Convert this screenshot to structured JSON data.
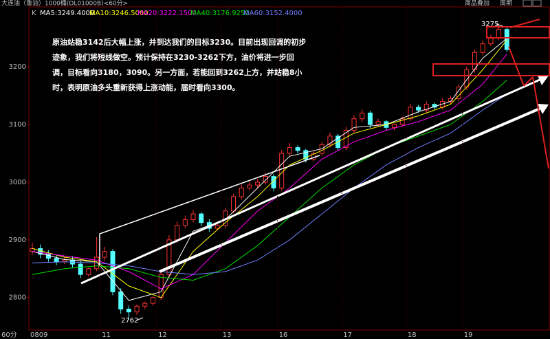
{
  "chart_data": {
    "type": "candlestick",
    "header": "大连油（重油）1000桶(DL01000B)<60分>",
    "k_label": "K",
    "period_label": "60分",
    "buttons": [
      "商品叠加",
      "周期"
    ],
    "annotation_lines": [
      "原油站稳3142后大幅上涨，并到达我们的目标3230。目前出现回调的初步",
      "迹象，我们将短线做空。预计保持在3230-3262下方，油价将进一步回",
      "调，目标看向3180，3090。另一方面，若能回到3262上方，并站稳8小",
      "时，表明原油多头重新获得上涨动能，届时看向3300。"
    ],
    "high_label": "3275",
    "low_label": "2762",
    "categories": [
      "0809",
      null,
      null,
      null,
      null,
      null,
      null,
      null,
      null,
      "11",
      null,
      null,
      null,
      null,
      null,
      null,
      "12",
      null,
      null,
      null,
      null,
      null,
      null,
      null,
      "13",
      null,
      null,
      null,
      null,
      null,
      null,
      "16",
      null,
      null,
      null,
      null,
      null,
      null,
      null,
      "17",
      null,
      null,
      null,
      null,
      null,
      null,
      null,
      "18",
      null,
      null,
      null,
      null,
      null,
      null,
      "19",
      null,
      null,
      null,
      null,
      null
    ],
    "open": [
      2880,
      2885,
      2875,
      2868,
      2862,
      2865,
      2858,
      2840,
      2850,
      2870,
      2880,
      2810,
      2780,
      2775,
      2785,
      2790,
      2800,
      2840,
      2900,
      2925,
      2935,
      2945,
      2930,
      2920,
      2925,
      2950,
      2975,
      2990,
      2995,
      3000,
      3010,
      2990,
      3050,
      3060,
      3055,
      3040,
      3050,
      3065,
      3080,
      3060,
      3090,
      3110,
      3120,
      3100,
      3105,
      3095,
      3100,
      3110,
      3130,
      3125,
      3135,
      3130,
      3140,
      3145,
      3165,
      3195,
      3225,
      3240,
      3250,
      3265
    ],
    "high": [
      2895,
      2892,
      2882,
      2874,
      2870,
      2872,
      2864,
      2852,
      2905,
      2888,
      2884,
      2816,
      2786,
      2788,
      2793,
      2802,
      2848,
      2908,
      2932,
      2942,
      2952,
      2948,
      2936,
      2930,
      2956,
      2980,
      2996,
      3000,
      3006,
      3016,
      3014,
      3056,
      3068,
      3064,
      3058,
      3054,
      3070,
      3086,
      3084,
      3096,
      3116,
      3126,
      3124,
      3110,
      3108,
      3102,
      3114,
      3136,
      3134,
      3140,
      3138,
      3146,
      3150,
      3170,
      3200,
      3230,
      3246,
      3256,
      3275,
      3268
    ],
    "low": [
      2874,
      2868,
      2862,
      2856,
      2858,
      2852,
      2834,
      2836,
      2846,
      2864,
      2804,
      2772,
      2762,
      2770,
      2780,
      2786,
      2796,
      2834,
      2894,
      2920,
      2930,
      2924,
      2914,
      2916,
      2920,
      2946,
      2970,
      2986,
      2990,
      2996,
      2984,
      2986,
      3046,
      3050,
      3034,
      3036,
      3046,
      3060,
      3054,
      3056,
      3086,
      3104,
      3094,
      3096,
      3090,
      3090,
      3096,
      3106,
      3120,
      3120,
      3126,
      3126,
      3136,
      3140,
      3160,
      3190,
      3220,
      3236,
      3246,
      3226
    ],
    "close": [
      2885,
      2875,
      2868,
      2862,
      2865,
      2858,
      2840,
      2850,
      2870,
      2880,
      2810,
      2780,
      2775,
      2785,
      2790,
      2800,
      2840,
      2900,
      2925,
      2935,
      2945,
      2930,
      2920,
      2925,
      2950,
      2975,
      2990,
      2995,
      3000,
      3010,
      2990,
      3050,
      3060,
      3055,
      3040,
      3050,
      3065,
      3080,
      3060,
      3090,
      3110,
      3120,
      3100,
      3105,
      3095,
      3100,
      3110,
      3130,
      3125,
      3135,
      3130,
      3140,
      3145,
      3165,
      3195,
      3225,
      3240,
      3250,
      3265,
      3230
    ],
    "up_color": "#ff3232",
    "down_color": "#54ffff",
    "ylim": [
      2746,
      3304
    ],
    "yticks": [
      2800,
      2900,
      3000,
      3100,
      3200
    ],
    "series": [
      {
        "name": "MA5",
        "label": "MA5:3249.4000",
        "color": "#ffffff",
        "x": [
          0,
          4,
          8,
          12,
          16,
          20,
          24,
          28,
          32,
          36,
          40,
          44,
          48,
          52,
          56,
          59
        ],
        "values": [
          2880,
          2866,
          2862,
          2795,
          2810,
          2915,
          2935,
          2990,
          3045,
          3058,
          3095,
          3100,
          3122,
          3140,
          3215,
          3249.4
        ]
      },
      {
        "name": "MA10",
        "label": "MA10:3246.5000",
        "color": "#ffff00",
        "x": [
          0,
          4,
          8,
          12,
          16,
          20,
          24,
          28,
          32,
          36,
          40,
          44,
          48,
          52,
          56,
          59
        ],
        "values": [
          2885,
          2870,
          2862,
          2820,
          2800,
          2880,
          2930,
          2975,
          3030,
          3055,
          3085,
          3100,
          3115,
          3135,
          3195,
          3246.5
        ]
      },
      {
        "name": "MA20",
        "label": "MA20:3222.1500",
        "color": "#ff00ff",
        "x": [
          0,
          4,
          8,
          12,
          16,
          20,
          24,
          28,
          32,
          36,
          40,
          44,
          48,
          52,
          56,
          59
        ],
        "values": [
          2880,
          2872,
          2865,
          2845,
          2815,
          2840,
          2895,
          2950,
          2990,
          3040,
          3070,
          3090,
          3105,
          3125,
          3170,
          3222.15
        ]
      },
      {
        "name": "MA40",
        "label": "MA40:3176.9250",
        "color": "#00e000",
        "x": [
          0,
          4,
          8,
          12,
          16,
          20,
          24,
          28,
          32,
          36,
          40,
          44,
          48,
          52,
          56,
          59
        ],
        "values": [
          2840,
          2850,
          2855,
          2850,
          2835,
          2830,
          2850,
          2890,
          2940,
          2990,
          3030,
          3060,
          3080,
          3100,
          3140,
          3176.925
        ]
      },
      {
        "name": "MA60",
        "label": "MA60:3152.4000",
        "color": "#7080ff",
        "x": [
          0,
          4,
          8,
          12,
          16,
          20,
          24,
          28,
          32,
          36,
          40,
          44,
          48,
          52,
          56,
          59
        ],
        "values": [
          2860,
          2862,
          2860,
          2855,
          2845,
          2840,
          2845,
          2865,
          2900,
          2945,
          2990,
          3030,
          3060,
          3085,
          3125,
          3152.4
        ]
      }
    ]
  }
}
